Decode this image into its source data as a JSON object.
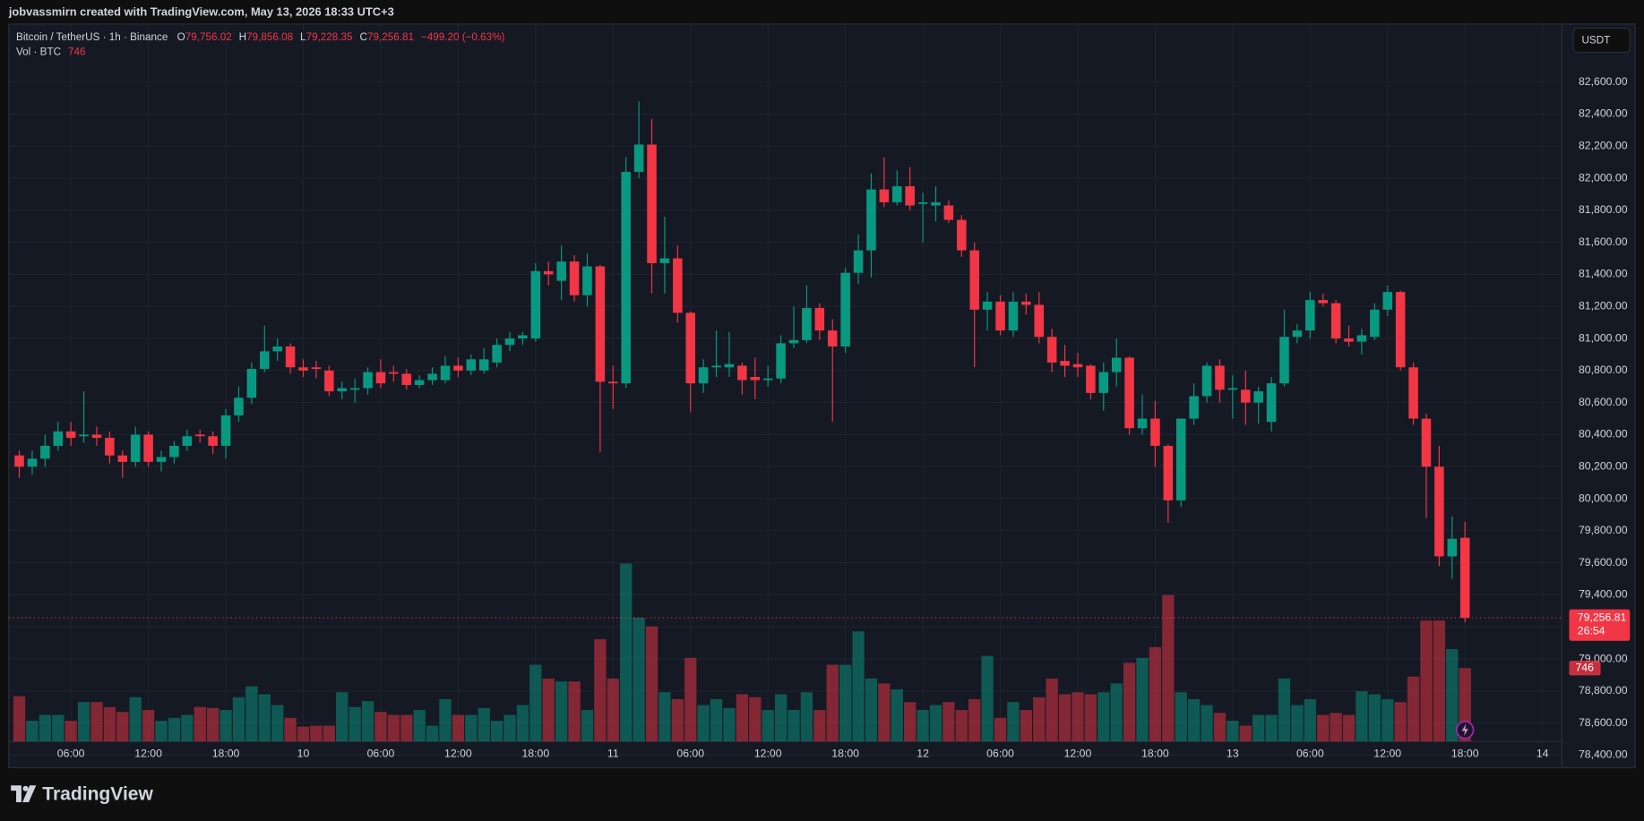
{
  "header": {
    "credit": "jobvassmirn created with TradingView.com, May 13, 2026 18:33 UTC+3"
  },
  "legend": {
    "symbol": "Bitcoin / TetherUS · 1h · Binance",
    "open_prefix": "O",
    "open": "79,756.02",
    "high_prefix": "H",
    "high": "79,856.08",
    "low_prefix": "L",
    "low": "79,228.35",
    "close_prefix": "C",
    "close": "79,256.81",
    "change": "−499.20 (−0.63%)",
    "volume_title": "Vol · BTC",
    "volume": "746"
  },
  "currency": "USDT",
  "price_badge": {
    "price": "79,256.81",
    "countdown": "26:54"
  },
  "volume_badge": "746",
  "footer": {
    "brand": "TradingView"
  },
  "chart_data": {
    "type": "candlestick",
    "up_color": "#089981",
    "down_color": "#f23645",
    "grid": true,
    "xlim": [
      -0.81,
      119.5
    ],
    "xticks": [
      {
        "value": 4,
        "label": "06:00"
      },
      {
        "value": 10,
        "label": "12:00"
      },
      {
        "value": 16,
        "label": "18:00"
      },
      {
        "value": 22,
        "label": "10"
      },
      {
        "value": 28,
        "label": "06:00"
      },
      {
        "value": 34,
        "label": "12:00"
      },
      {
        "value": 40,
        "label": "18:00"
      },
      {
        "value": 46,
        "label": "11"
      },
      {
        "value": 52,
        "label": "06:00"
      },
      {
        "value": 58,
        "label": "12:00"
      },
      {
        "value": 64,
        "label": "18:00"
      },
      {
        "value": 70,
        "label": "12"
      },
      {
        "value": 76,
        "label": "06:00"
      },
      {
        "value": 82,
        "label": "12:00"
      },
      {
        "value": 88,
        "label": "18:00"
      },
      {
        "value": 94,
        "label": "13"
      },
      {
        "value": 100,
        "label": "06:00"
      },
      {
        "value": 106,
        "label": "12:00"
      },
      {
        "value": 112,
        "label": "18:00"
      },
      {
        "value": 118,
        "label": "14"
      }
    ],
    "ylim": [
      78322,
      82962
    ],
    "yticks": [
      {
        "value": 78400,
        "label": "78,400.00"
      },
      {
        "value": 78600,
        "label": "78,600.00"
      },
      {
        "value": 78800,
        "label": "78,800.00"
      },
      {
        "value": 79000,
        "label": "79,000.00"
      },
      {
        "value": 79200,
        "label": "79,200.00"
      },
      {
        "value": 79400,
        "label": "79,400.00"
      },
      {
        "value": 79600,
        "label": "79,600.00"
      },
      {
        "value": 79800,
        "label": "79,800.00"
      },
      {
        "value": 80000,
        "label": "80,000.00"
      },
      {
        "value": 80200,
        "label": "80,200.00"
      },
      {
        "value": 80400,
        "label": "80,400.00"
      },
      {
        "value": 80600,
        "label": "80,600.00"
      },
      {
        "value": 80800,
        "label": "80,800.00"
      },
      {
        "value": 81000,
        "label": "81,000.00"
      },
      {
        "value": 81200,
        "label": "81,200.00"
      },
      {
        "value": 81400,
        "label": "81,400.00"
      },
      {
        "value": 81600,
        "label": "81,600.00"
      },
      {
        "value": 81800,
        "label": "81,800.00"
      },
      {
        "value": 82000,
        "label": "82,000.00"
      },
      {
        "value": 82200,
        "label": "82,200.00"
      },
      {
        "value": 82400,
        "label": "82,400.00"
      },
      {
        "value": 82600,
        "label": "82,600.00"
      }
    ],
    "volume_ylim": [
      0,
      7300
    ],
    "open": [
      80270,
      80200,
      80250,
      80330,
      80420,
      80390,
      80400,
      80380,
      80270,
      80230,
      80400,
      80230,
      80260,
      80330,
      80400,
      80390,
      80330,
      80520,
      80630,
      80810,
      80920,
      80950,
      80820,
      80820,
      80800,
      80670,
      80680,
      80690,
      80790,
      80790,
      80780,
      80710,
      80740,
      80740,
      80830,
      80800,
      80800,
      80850,
      80960,
      81000,
      81000,
      81420,
      81360,
      81480,
      81270,
      81450,
      80730,
      80720,
      82040,
      82210,
      81470,
      81500,
      81160,
      80720,
      80820,
      80820,
      80830,
      80760,
      80740,
      80750,
      80970,
      80990,
      81190,
      81050,
      80950,
      81410,
      81550,
      81930,
      81850,
      81950,
      81840,
      81830,
      81830,
      81740,
      81550,
      81180,
      81230,
      81050,
      81230,
      81210,
      81010,
      80860,
      80840,
      80830,
      80660,
      80790,
      80880,
      80440,
      80500,
      80330,
      79990,
      80500,
      80640,
      80830,
      80680,
      80680,
      80600,
      80480,
      80720,
      81010,
      81050,
      81240,
      81220,
      81000,
      80980,
      81010,
      81180,
      81290,
      80820,
      80500,
      80200,
      79640,
      79756.02
    ],
    "high": [
      80300,
      80300,
      80400,
      80480,
      80480,
      80670,
      80450,
      80420,
      80300,
      80450,
      80420,
      80300,
      80360,
      80430,
      80430,
      80420,
      80560,
      80700,
      80850,
      81080,
      81000,
      80970,
      80870,
      80860,
      80830,
      80730,
      80750,
      80820,
      80870,
      80830,
      80810,
      80770,
      80820,
      80890,
      80880,
      80900,
      80940,
      81000,
      81040,
      81040,
      81470,
      81480,
      81580,
      81520,
      81530,
      81460,
      80830,
      82130,
      82480,
      82370,
      81760,
      81580,
      81170,
      80870,
      81050,
      81040,
      80850,
      80880,
      80830,
      81020,
      81200,
      81330,
      81220,
      81120,
      81440,
      81650,
      82030,
      82130,
      82050,
      82070,
      81910,
      81950,
      81860,
      81770,
      81600,
      81290,
      81270,
      81290,
      81280,
      81290,
      81060,
      80960,
      80910,
      80840,
      80850,
      81000,
      80890,
      80650,
      80610,
      80340,
      80500,
      80720,
      80850,
      80870,
      80770,
      80800,
      80700,
      80760,
      81180,
      81090,
      81290,
      81280,
      81240,
      81080,
      81060,
      81220,
      81330,
      81300,
      80850,
      80530,
      80330,
      79890,
      79856.08
    ],
    "low": [
      80130,
      80150,
      80200,
      80300,
      80330,
      80350,
      80330,
      80220,
      80130,
      80200,
      80200,
      80170,
      80220,
      80300,
      80350,
      80280,
      80250,
      80480,
      80590,
      80790,
      80860,
      80780,
      80760,
      80750,
      80640,
      80620,
      80600,
      80650,
      80690,
      80730,
      80680,
      80690,
      80710,
      80720,
      80760,
      80770,
      80780,
      80820,
      80920,
      80960,
      80980,
      81330,
      81240,
      81230,
      81200,
      80290,
      80560,
      80690,
      82000,
      81280,
      81280,
      81100,
      80540,
      80660,
      80760,
      80760,
      80650,
      80620,
      80700,
      80720,
      80940,
      80970,
      80990,
      80480,
      80910,
      81340,
      81380,
      81820,
      81830,
      81800,
      81600,
      81730,
      81720,
      81510,
      80820,
      81050,
      81020,
      81010,
      81150,
      80970,
      80790,
      80760,
      80760,
      80620,
      80550,
      80700,
      80400,
      80400,
      80200,
      79850,
      79950,
      80460,
      80600,
      80600,
      80500,
      80460,
      80470,
      80420,
      80700,
      80970,
      81000,
      81200,
      80970,
      80950,
      80900,
      80990,
      81140,
      80800,
      80460,
      79880,
      79580,
      79500,
      79228.35
    ],
    "close": [
      80200,
      80250,
      80330,
      80420,
      80380,
      80400,
      80380,
      80270,
      80230,
      80400,
      80230,
      80260,
      80330,
      80390,
      80390,
      80330,
      80520,
      80630,
      80810,
      80920,
      80950,
      80820,
      80800,
      80810,
      80670,
      80690,
      80690,
      80790,
      80720,
      80780,
      80710,
      80740,
      80780,
      80830,
      80800,
      80870,
      80870,
      80960,
      81000,
      81020,
      81420,
      81400,
      81480,
      81270,
      81450,
      80730,
      80720,
      82040,
      82210,
      81470,
      81500,
      81160,
      80720,
      80820,
      80830,
      80840,
      80740,
      80740,
      80750,
      80970,
      80990,
      81190,
      81050,
      80950,
      81410,
      81550,
      81930,
      81850,
      81950,
      81830,
      81850,
      81850,
      81740,
      81550,
      81180,
      81230,
      81050,
      81230,
      81210,
      81010,
      80850,
      80830,
      80820,
      80660,
      80790,
      80880,
      80440,
      80500,
      80330,
      79990,
      80500,
      80640,
      80830,
      80680,
      80690,
      80600,
      80670,
      80720,
      81010,
      81050,
      81240,
      81220,
      81000,
      80980,
      81020,
      81180,
      81290,
      80820,
      80500,
      80200,
      79640,
      79750,
      79256.81
    ],
    "volume": [
      460,
      210,
      270,
      270,
      210,
      400,
      400,
      350,
      300,
      450,
      320,
      210,
      240,
      270,
      350,
      340,
      320,
      450,
      560,
      480,
      370,
      240,
      150,
      160,
      160,
      500,
      350,
      410,
      300,
      270,
      270,
      320,
      160,
      430,
      270,
      270,
      340,
      210,
      270,
      370,
      780,
      640,
      610,
      610,
      320,
      1040,
      640,
      1810,
      1260,
      1170,
      500,
      430,
      850,
      370,
      430,
      340,
      480,
      450,
      320,
      480,
      320,
      500,
      320,
      780,
      780,
      1120,
      640,
      590,
      530,
      400,
      320,
      370,
      400,
      320,
      430,
      870,
      240,
      400,
      320,
      450,
      640,
      480,
      500,
      480,
      500,
      590,
      800,
      850,
      960,
      1490,
      500,
      430,
      370,
      290,
      210,
      160,
      270,
      270,
      640,
      370,
      430,
      270,
      290,
      270,
      510,
      480,
      430,
      400,
      660,
      1230,
      1230,
      940,
      746
    ]
  }
}
